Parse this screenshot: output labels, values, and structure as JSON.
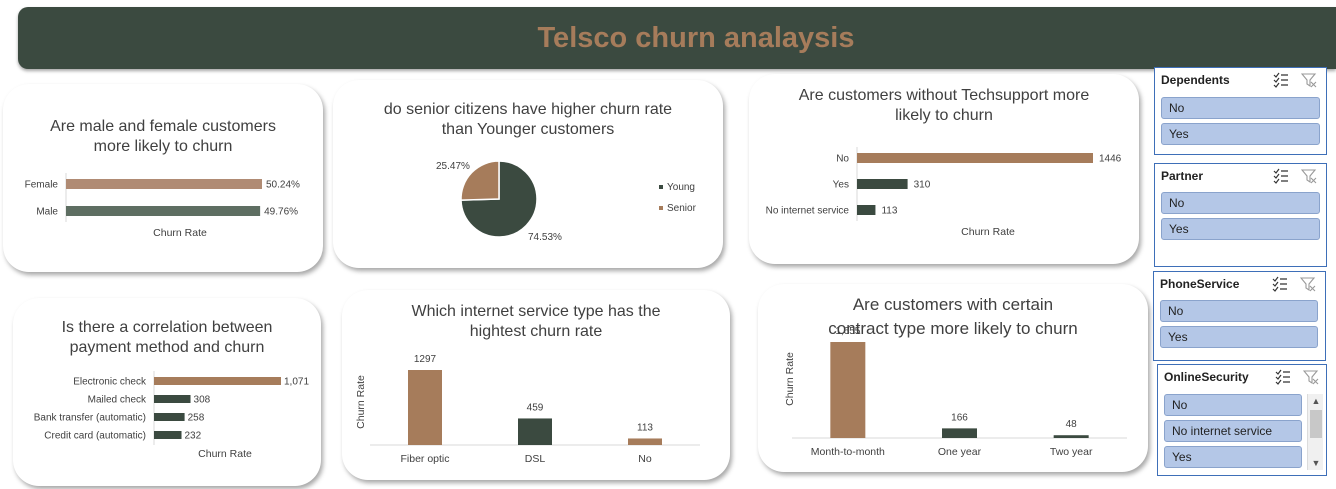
{
  "dashboard": {
    "title": "Telsco churn analaysis"
  },
  "colors": {
    "brown": "#a67c5b",
    "dark_green": "#3b4a40",
    "gray_green": "#5e6e62",
    "slicer_item": "#b4c7e7",
    "slicer_border": "#3e6fb8"
  },
  "charts": {
    "gender": {
      "title_line1": "Are male and female customers",
      "title_line2": "more likely to churn",
      "xlabel": "Churn Rate",
      "chart_data": {
        "type": "bar",
        "orientation": "horizontal",
        "categories": [
          "Female",
          "Male"
        ],
        "values": [
          50.24,
          49.76
        ],
        "value_labels": [
          "50.24%",
          "49.76%"
        ],
        "colors": [
          "#b08b74",
          "#5e6e62"
        ],
        "xlabel": "Churn Rate"
      }
    },
    "senior": {
      "title_line1": "do senior citizens have higher churn rate",
      "title_line2": "than Younger customers",
      "chart_data": {
        "type": "pie",
        "categories": [
          "Young",
          "Senior"
        ],
        "values": [
          74.53,
          25.47
        ],
        "value_labels": [
          "74.53%",
          "25.47%"
        ],
        "colors": [
          "#3b4a40",
          "#a67c5b"
        ],
        "legend": "right"
      }
    },
    "techsupport": {
      "title_line1": "Are customers without  Techsupport more",
      "title_line2": "likely to churn",
      "xlabel": "Churn Rate",
      "chart_data": {
        "type": "bar",
        "orientation": "horizontal",
        "categories": [
          "No",
          "Yes",
          "No internet service"
        ],
        "values": [
          1446,
          310,
          113
        ],
        "value_labels": [
          "1446",
          "310",
          "113"
        ],
        "colors": [
          "#a67c5b",
          "#3b4a40",
          "#3b4a40"
        ],
        "xlabel": "Churn Rate"
      }
    },
    "payment": {
      "title_line1": "Is there a correlation between",
      "title_line2": "payment method and churn",
      "xlabel": "Churn Rate",
      "chart_data": {
        "type": "bar",
        "orientation": "horizontal",
        "categories": [
          "Electronic check",
          "Mailed check",
          "Bank transfer (automatic)",
          "Credit card (automatic)"
        ],
        "values": [
          1071,
          308,
          258,
          232
        ],
        "value_labels": [
          "1,071",
          "308",
          "258",
          "232"
        ],
        "colors": [
          "#a67c5b",
          "#3b4a40",
          "#3b4a40",
          "#3b4a40"
        ],
        "xlabel": "Churn Rate"
      }
    },
    "internet": {
      "title_line1": "Which internet service type has the",
      "title_line2": "hightest churn rate",
      "ylabel": "Churn Rate",
      "chart_data": {
        "type": "bar",
        "orientation": "vertical",
        "categories": [
          "Fiber optic",
          "DSL",
          "No"
        ],
        "values": [
          1297,
          459,
          113
        ],
        "value_labels": [
          "1297",
          "459",
          "113"
        ],
        "colors": [
          "#a67c5b",
          "#3b4a40",
          "#a67c5b"
        ],
        "ylabel": "Churn Rate"
      }
    },
    "contract": {
      "title_line1": "Are customers with certain",
      "title_line2": "contract type more likely to churn",
      "ylabel": "Churn Rate",
      "chart_data": {
        "type": "bar",
        "orientation": "vertical",
        "categories": [
          "Month-to-month",
          "One year",
          "Two year"
        ],
        "values": [
          1655,
          166,
          48
        ],
        "value_labels": [
          "1,655",
          "166",
          "48"
        ],
        "colors": [
          "#a67c5b",
          "#3b4a40",
          "#3b4a40"
        ],
        "ylabel": "Churn Rate"
      }
    }
  },
  "slicers": [
    {
      "title": "Dependents",
      "items": [
        "No",
        "Yes"
      ]
    },
    {
      "title": "Partner",
      "items": [
        "No",
        "Yes"
      ]
    },
    {
      "title": "PhoneService",
      "items": [
        "No",
        "Yes"
      ]
    },
    {
      "title": "OnlineSecurity",
      "items": [
        "No",
        "No internet service",
        "Yes"
      ]
    }
  ],
  "icons": {
    "multi_select": "multi-select-icon",
    "clear_filter": "clear-filter-icon"
  }
}
